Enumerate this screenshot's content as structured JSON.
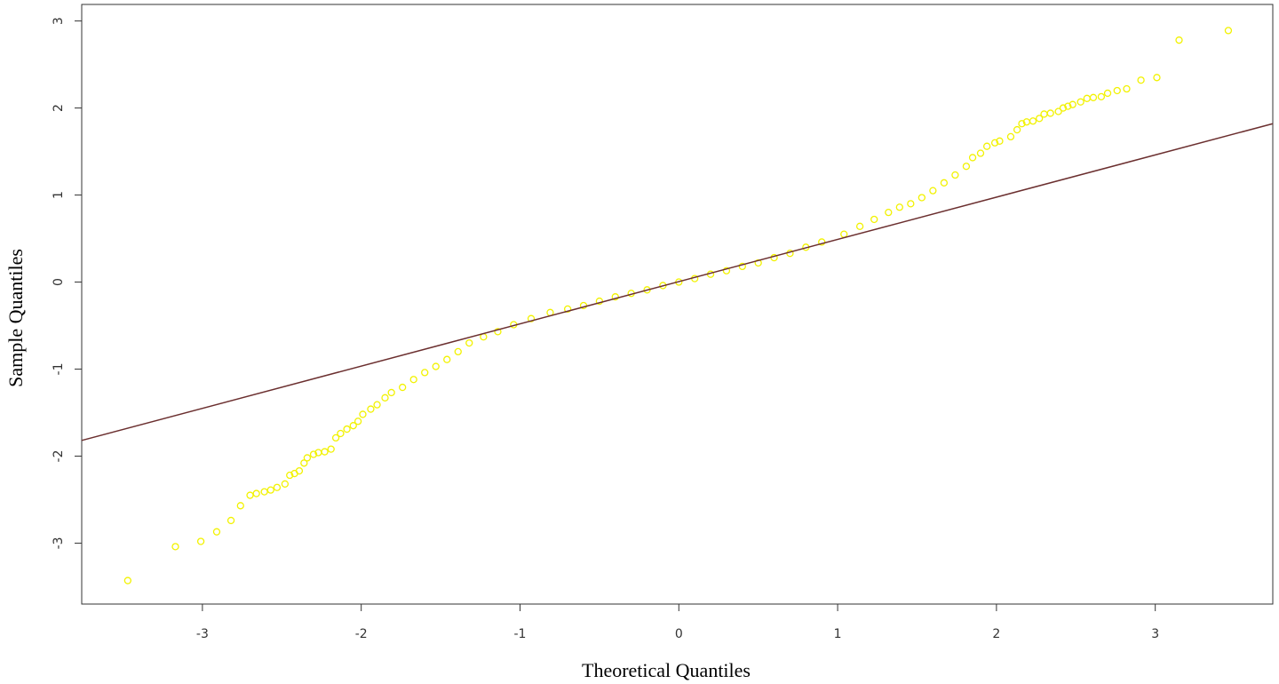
{
  "chart_data": {
    "type": "scatter",
    "xlabel": "Theoretical Quantiles",
    "ylabel": "Sample Quantiles",
    "color": "#f2f200",
    "x": [
      -3.47,
      -3.17,
      -3.01,
      -2.91,
      -2.82,
      -2.76,
      -2.7,
      -2.66,
      -2.61,
      -2.57,
      -2.53,
      -2.48,
      -2.45,
      -2.42,
      -2.39,
      -2.36,
      -2.34,
      -2.3,
      -2.27,
      -2.23,
      -2.19,
      -2.16,
      -2.13,
      -2.09,
      -2.05,
      -2.02,
      -1.99,
      -1.94,
      -1.9,
      -1.85,
      -1.81,
      -1.74,
      -1.67,
      -1.6,
      -1.53,
      -1.46,
      -1.39,
      -1.32,
      -1.23,
      -1.14,
      -1.04,
      -0.93,
      -0.81,
      -0.7,
      -0.6,
      -0.5,
      -0.4,
      -0.3,
      -0.2,
      -0.1,
      0.0,
      0.1,
      0.2,
      0.3,
      0.4,
      0.5,
      0.6,
      0.7,
      0.8,
      0.9,
      1.04,
      1.14,
      1.23,
      1.32,
      1.39,
      1.46,
      1.53,
      1.6,
      1.67,
      1.74,
      1.81,
      1.85,
      1.9,
      1.94,
      1.99,
      2.02,
      2.09,
      2.13,
      2.16,
      2.19,
      2.23,
      2.27,
      2.3,
      2.34,
      2.39,
      2.42,
      2.45,
      2.48,
      2.53,
      2.57,
      2.61,
      2.66,
      2.7,
      2.76,
      2.82,
      2.91,
      3.01,
      3.15,
      3.46
    ],
    "y": [
      -3.43,
      -3.04,
      -2.98,
      -2.87,
      -2.74,
      -2.57,
      -2.45,
      -2.43,
      -2.41,
      -2.39,
      -2.36,
      -2.32,
      -2.22,
      -2.2,
      -2.17,
      -2.08,
      -2.02,
      -1.98,
      -1.96,
      -1.95,
      -1.92,
      -1.79,
      -1.74,
      -1.69,
      -1.65,
      -1.6,
      -1.52,
      -1.46,
      -1.41,
      -1.33,
      -1.27,
      -1.21,
      -1.12,
      -1.04,
      -0.97,
      -0.89,
      -0.8,
      -0.7,
      -0.63,
      -0.57,
      -0.49,
      -0.42,
      -0.35,
      -0.31,
      -0.27,
      -0.22,
      -0.17,
      -0.13,
      -0.09,
      -0.04,
      0.0,
      0.04,
      0.09,
      0.13,
      0.18,
      0.22,
      0.28,
      0.33,
      0.4,
      0.46,
      0.55,
      0.64,
      0.72,
      0.8,
      0.86,
      0.9,
      0.97,
      1.05,
      1.14,
      1.23,
      1.33,
      1.43,
      1.48,
      1.56,
      1.6,
      1.62,
      1.67,
      1.75,
      1.82,
      1.84,
      1.85,
      1.88,
      1.93,
      1.94,
      1.96,
      2.0,
      2.02,
      2.04,
      2.07,
      2.11,
      2.12,
      2.13,
      2.17,
      2.2,
      2.22,
      2.32,
      2.35,
      2.78,
      2.89
    ],
    "line": {
      "color": "#6b2f2f",
      "x": [
        -3.76,
        3.74
      ],
      "y": [
        -1.82,
        1.82
      ]
    },
    "xlim": [
      -3.76,
      3.74
    ],
    "ylim": [
      -3.7,
      3.19
    ],
    "xticks": [
      -3,
      -2,
      -1,
      0,
      1,
      2,
      3
    ],
    "yticks": [
      -3,
      -2,
      -1,
      0,
      1,
      2,
      3
    ]
  }
}
